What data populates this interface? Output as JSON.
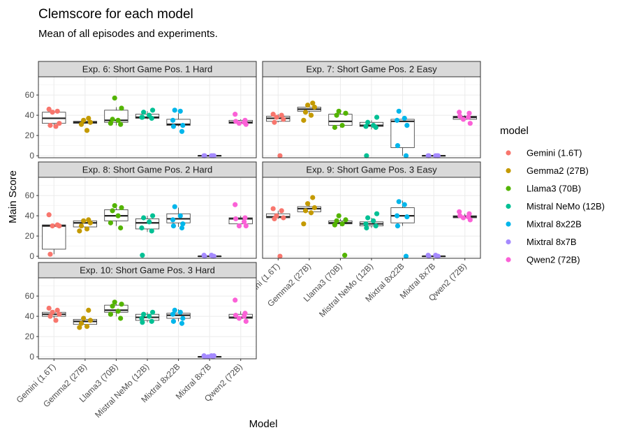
{
  "chart_data": {
    "type": "box-jitter-facet",
    "title": "Clemscore for each model",
    "subtitle": "Mean of all episodes and experiments.",
    "xlabel": "Model",
    "ylabel": "Main Score",
    "ylim": [
      -2,
      78
    ],
    "yticks": [
      0,
      20,
      40,
      60
    ],
    "grid": true,
    "legend": {
      "title": "model",
      "position": "right"
    },
    "categories": [
      "Gemini (1.6T)",
      "Gemma2 (27B)",
      "Llama3 (70B)",
      "Mistral NeMo (12B)",
      "Mixtral 8x22B",
      "Mixtral 8x7B",
      "Qwen2 (72B)"
    ],
    "colors": [
      "#F8766D",
      "#C49A00",
      "#53B400",
      "#00C094",
      "#00B6EB",
      "#A58AFF",
      "#FB61D7"
    ],
    "panels": [
      {
        "title": "Exp. 6: Short Game Pos. 1 Hard",
        "boxes": [
          [
            30,
            32,
            37,
            43,
            45
          ],
          [
            32,
            32,
            33,
            34,
            36
          ],
          [
            30,
            33,
            35,
            45,
            48
          ],
          [
            36,
            37,
            38,
            41,
            44
          ],
          [
            29,
            30,
            31,
            36,
            42
          ],
          [
            0,
            0,
            0,
            0,
            0
          ],
          [
            31,
            32,
            33,
            35,
            36
          ]
        ],
        "points": [
          [
            46,
            44,
            43,
            32,
            30,
            29
          ],
          [
            37,
            35,
            33,
            31,
            25
          ],
          [
            57,
            47,
            36,
            35,
            32,
            31
          ],
          [
            45,
            43,
            40,
            38,
            37,
            38
          ],
          [
            45,
            44,
            35,
            30,
            29,
            24
          ],
          [
            0,
            0,
            0,
            0,
            0
          ],
          [
            41,
            35,
            34,
            33,
            32,
            31
          ]
        ]
      },
      {
        "title": "Exp. 7: Short Game Pos. 2 Easy",
        "boxes": [
          [
            33,
            34,
            37,
            39,
            41
          ],
          [
            41,
            44,
            46,
            48,
            49
          ],
          [
            28,
            30,
            34,
            41,
            43
          ],
          [
            26,
            29,
            30,
            33,
            35
          ],
          [
            0,
            8,
            34,
            36,
            37
          ],
          [
            0,
            0,
            0,
            0,
            0
          ],
          [
            35,
            36,
            38,
            39,
            40
          ]
        ],
        "points": [
          [
            41,
            40,
            38,
            36,
            33,
            0
          ],
          [
            52,
            50,
            48,
            43,
            40,
            35
          ],
          [
            44,
            42,
            40,
            30,
            28
          ],
          [
            38,
            33,
            30,
            29,
            28,
            0
          ],
          [
            44,
            37,
            35,
            30,
            10,
            0
          ],
          [
            0,
            0,
            0,
            0,
            0
          ],
          [
            43,
            42,
            39,
            38,
            36,
            32
          ]
        ]
      },
      {
        "title": "Exp. 8: Short Game Pos. 2 Hard",
        "boxes": [
          [
            2,
            7,
            30,
            31,
            32
          ],
          [
            27,
            29,
            33,
            35,
            36
          ],
          [
            30,
            35,
            40,
            46,
            51
          ],
          [
            24,
            27,
            33,
            37,
            40
          ],
          [
            29,
            33,
            37,
            42,
            48
          ],
          [
            0,
            0,
            0,
            0,
            0
          ],
          [
            30,
            32,
            37,
            38,
            40
          ]
        ],
        "points": [
          [
            41,
            31,
            30,
            30,
            2
          ],
          [
            36,
            35,
            33,
            30,
            27,
            25
          ],
          [
            50,
            48,
            45,
            40,
            33,
            28
          ],
          [
            40,
            38,
            34,
            28,
            25,
            1
          ],
          [
            49,
            40,
            36,
            32,
            30,
            28
          ],
          [
            1,
            1,
            0,
            0,
            0
          ],
          [
            51,
            38,
            37,
            34,
            30,
            30
          ]
        ]
      },
      {
        "title": "Exp. 9: Short Game Pos. 3 Easy",
        "boxes": [
          [
            37,
            38,
            39,
            42,
            45
          ],
          [
            43,
            44,
            47,
            49,
            52
          ],
          [
            30,
            32,
            33,
            35,
            37
          ],
          [
            28,
            30,
            32,
            34,
            38
          ],
          [
            30,
            33,
            40,
            48,
            55
          ],
          [
            0,
            0,
            0,
            0,
            0
          ],
          [
            37,
            38,
            39,
            40,
            42
          ]
        ],
        "points": [
          [
            47,
            45,
            40,
            38,
            37,
            0
          ],
          [
            58,
            52,
            48,
            45,
            43,
            32
          ],
          [
            40,
            36,
            35,
            32,
            31,
            1
          ],
          [
            42,
            38,
            35,
            32,
            30,
            28
          ],
          [
            54,
            51,
            40,
            39,
            30,
            0
          ],
          [
            1,
            1,
            0,
            0,
            0
          ],
          [
            44,
            42,
            40,
            39,
            38,
            36
          ]
        ]
      },
      {
        "title": "Exp. 10: Short Game Pos. 3 Hard",
        "boxes": [
          [
            38,
            40,
            42,
            44,
            46
          ],
          [
            30,
            32,
            35,
            37,
            40
          ],
          [
            40,
            44,
            46,
            51,
            54
          ],
          [
            34,
            36,
            39,
            42,
            44
          ],
          [
            35,
            38,
            41,
            43,
            47
          ],
          [
            0,
            0,
            0,
            0,
            0
          ],
          [
            37,
            38,
            39,
            42,
            45
          ]
        ],
        "points": [
          [
            48,
            46,
            44,
            42,
            40,
            36
          ],
          [
            46,
            38,
            36,
            33,
            30,
            29
          ],
          [
            54,
            52,
            50,
            45,
            42,
            38
          ],
          [
            44,
            42,
            40,
            38,
            35,
            34
          ],
          [
            46,
            44,
            42,
            38,
            35,
            33
          ],
          [
            1,
            1,
            1,
            0,
            0,
            0
          ],
          [
            56,
            43,
            41,
            40,
            38,
            35
          ]
        ]
      }
    ]
  }
}
